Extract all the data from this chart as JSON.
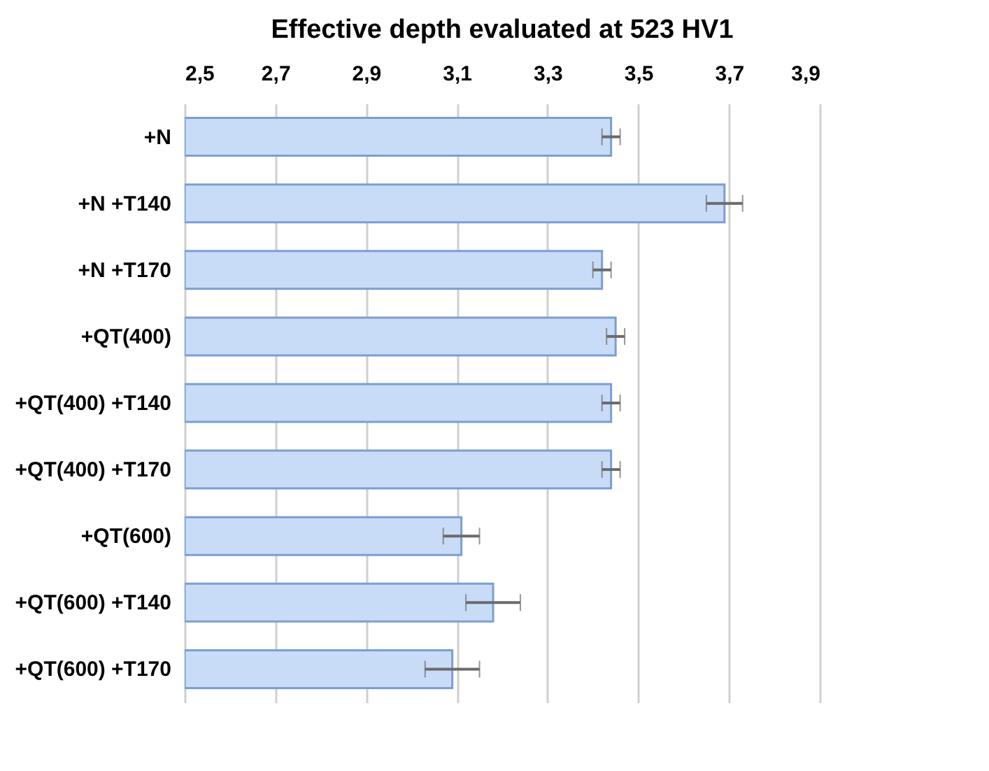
{
  "chart_data": {
    "type": "bar",
    "orientation": "horizontal",
    "title": "Effective depth evaluated at 523 HV1",
    "categories": [
      "+N",
      "+N +T140",
      "+N +T170",
      "+QT(400)",
      "+QT(400) +T140",
      "+QT(400) +T170",
      "+QT(600)",
      "+QT(600) +T140",
      "+QT(600) +T170"
    ],
    "values": [
      3.44,
      3.69,
      3.42,
      3.45,
      3.44,
      3.44,
      3.11,
      3.18,
      3.09
    ],
    "errors": [
      0.02,
      0.04,
      0.02,
      0.02,
      0.02,
      0.02,
      0.04,
      0.06,
      0.06
    ],
    "color": "#c9dcf7",
    "xlim": [
      2.5,
      3.9
    ],
    "xticks": [
      {
        "value": 2.5,
        "label": "2,5"
      },
      {
        "value": 2.7,
        "label": "2,7"
      },
      {
        "value": 2.9,
        "label": "2,9"
      },
      {
        "value": 3.1,
        "label": "3,1"
      },
      {
        "value": 3.3,
        "label": "3,3"
      },
      {
        "value": 3.5,
        "label": "3,5"
      },
      {
        "value": 3.7,
        "label": "3,7"
      },
      {
        "value": 3.9,
        "label": "3,9"
      }
    ],
    "grid": "x"
  }
}
